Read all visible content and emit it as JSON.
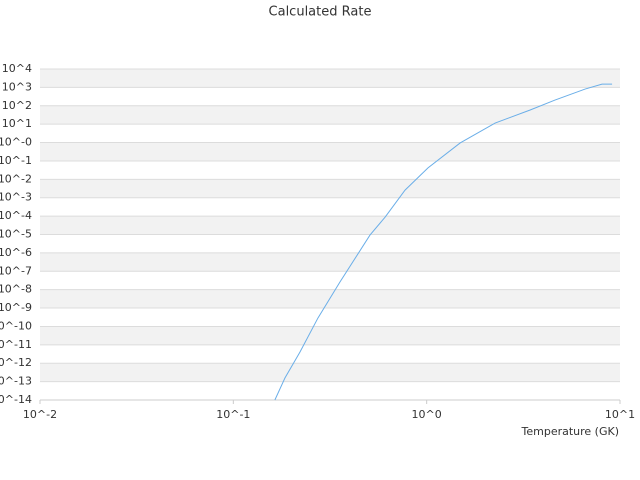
{
  "chart_data": {
    "type": "line",
    "title": "Calculated Rate",
    "x_label": "Temperature (GK)",
    "xscale": "log",
    "yscale": "log",
    "grid": true,
    "band_color": "#f2f2f2",
    "xlim": [
      0.01,
      10
    ],
    "xticks": [
      {
        "value": 0.01,
        "label": "10^-2"
      },
      {
        "value": 0.1,
        "label": "10^-1"
      },
      {
        "value": 1,
        "label": "10^0"
      },
      {
        "value": 10,
        "label": "10^1"
      }
    ],
    "ylim": [
      1e-14,
      10000
    ],
    "yticks": [
      {
        "value": 10000,
        "label": "10^4"
      },
      {
        "value": 1000,
        "label": "10^3"
      },
      {
        "value": 100,
        "label": "10^2"
      },
      {
        "value": 10,
        "label": "10^1"
      },
      {
        "value": 1,
        "label": "10^-0"
      },
      {
        "value": 0.1,
        "label": "10^-1"
      },
      {
        "value": 0.01,
        "label": "10^-2"
      },
      {
        "value": 0.001,
        "label": "10^-3"
      },
      {
        "value": 0.0001,
        "label": "10^-4"
      },
      {
        "value": 1e-05,
        "label": "10^-5"
      },
      {
        "value": 1e-06,
        "label": "10^-6"
      },
      {
        "value": 1e-07,
        "label": "10^-7"
      },
      {
        "value": 1e-08,
        "label": "10^-8"
      },
      {
        "value": 1e-09,
        "label": "10^-9"
      },
      {
        "value": 1e-10,
        "label": "10^-10"
      },
      {
        "value": 1e-11,
        "label": "10^-11"
      },
      {
        "value": 1e-12,
        "label": "10^-12"
      },
      {
        "value": 1e-13,
        "label": "10^-13"
      },
      {
        "value": 1e-14,
        "label": "10^-14"
      }
    ],
    "series": [
      {
        "color": "#6aaee8",
        "x": [
          0.164,
          0.185,
          0.221,
          0.274,
          0.356,
          0.509,
          0.61,
          0.773,
          1.016,
          1.49,
          2.26,
          3.43,
          4.61,
          6.6,
          8.07,
          9.1
        ],
        "values": [
          1e-14,
          1.6e-13,
          4e-12,
          2.9e-10,
          2.6e-08,
          9.3e-06,
          8.9e-05,
          0.0026,
          0.042,
          0.95,
          11.5,
          59,
          205,
          810,
          1500,
          1500
        ]
      }
    ]
  }
}
